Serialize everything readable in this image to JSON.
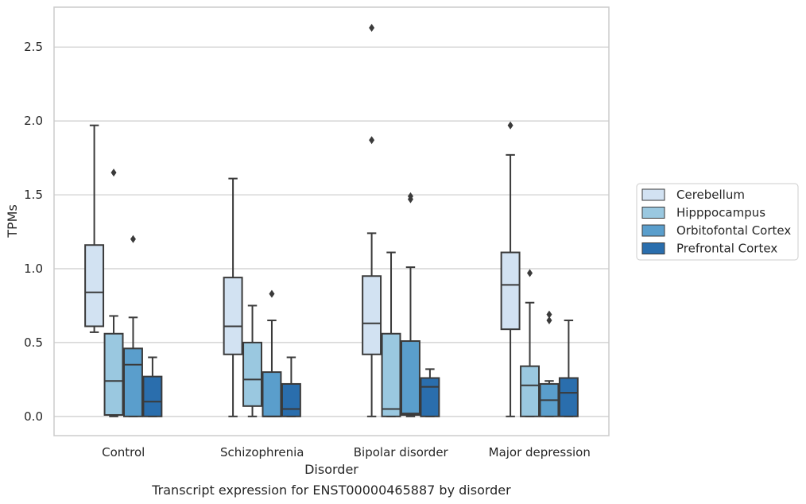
{
  "chart_data": {
    "type": "box",
    "title": "",
    "caption": "Transcript expression for ENST00000465887 by disorder",
    "xlabel": "Disorder",
    "ylabel": "TPMs",
    "ylim": [
      -0.13,
      2.77
    ],
    "yticks": [
      0.0,
      0.5,
      1.0,
      1.5,
      2.0,
      2.5
    ],
    "ytick_labels": [
      "0.0",
      "0.5",
      "1.0",
      "1.5",
      "2.0",
      "2.5"
    ],
    "grid": "horizontal",
    "legend_position": "right",
    "categories": [
      "Control",
      "Schizophrenia",
      "Bipolar disorder",
      "Major depression"
    ],
    "series": [
      {
        "name": "Cerebellum",
        "color": "#d2e2f2",
        "boxes": [
          {
            "whisker_low": 0.57,
            "q1": 0.61,
            "median": 0.84,
            "q3": 1.16,
            "whisker_high": 1.97,
            "outliers": []
          },
          {
            "whisker_low": 0.0,
            "q1": 0.42,
            "median": 0.61,
            "q3": 0.94,
            "whisker_high": 1.61,
            "outliers": []
          },
          {
            "whisker_low": 0.0,
            "q1": 0.42,
            "median": 0.63,
            "q3": 0.95,
            "whisker_high": 1.24,
            "outliers": [
              1.87,
              2.63
            ]
          },
          {
            "whisker_low": 0.0,
            "q1": 0.59,
            "median": 0.89,
            "q3": 1.11,
            "whisker_high": 1.77,
            "outliers": [
              1.97
            ]
          }
        ]
      },
      {
        "name": "Hipppocampus",
        "color": "#9ac8e0",
        "boxes": [
          {
            "whisker_low": 0.0,
            "q1": 0.01,
            "median": 0.24,
            "q3": 0.56,
            "whisker_high": 0.68,
            "outliers": [
              1.65
            ]
          },
          {
            "whisker_low": 0.0,
            "q1": 0.07,
            "median": 0.25,
            "q3": 0.5,
            "whisker_high": 0.75,
            "outliers": []
          },
          {
            "whisker_low": 0.0,
            "q1": 0.0,
            "median": 0.05,
            "q3": 0.56,
            "whisker_high": 1.11,
            "outliers": []
          },
          {
            "whisker_low": 0.0,
            "q1": 0.0,
            "median": 0.21,
            "q3": 0.34,
            "whisker_high": 0.77,
            "outliers": [
              0.97
            ]
          }
        ]
      },
      {
        "name": "Orbitofontal Cortex",
        "color": "#5a9ecc",
        "boxes": [
          {
            "whisker_low": 0.0,
            "q1": 0.0,
            "median": 0.35,
            "q3": 0.46,
            "whisker_high": 0.67,
            "outliers": [
              1.2
            ]
          },
          {
            "whisker_low": 0.0,
            "q1": 0.0,
            "median": 0.0,
            "q3": 0.3,
            "whisker_high": 0.65,
            "outliers": [
              0.83
            ]
          },
          {
            "whisker_low": 0.0,
            "q1": 0.01,
            "median": 0.02,
            "q3": 0.51,
            "whisker_high": 1.01,
            "outliers": [
              1.47,
              1.49
            ]
          },
          {
            "whisker_low": 0.0,
            "q1": 0.0,
            "median": 0.11,
            "q3": 0.22,
            "whisker_high": 0.24,
            "outliers": [
              0.65,
              0.69
            ]
          }
        ]
      },
      {
        "name": "Prefrontal Cortex",
        "color": "#2a6ead",
        "boxes": [
          {
            "whisker_low": 0.0,
            "q1": 0.0,
            "median": 0.1,
            "q3": 0.27,
            "whisker_high": 0.4,
            "outliers": []
          },
          {
            "whisker_low": 0.0,
            "q1": 0.0,
            "median": 0.05,
            "q3": 0.22,
            "whisker_high": 0.4,
            "outliers": []
          },
          {
            "whisker_low": 0.0,
            "q1": 0.0,
            "median": 0.2,
            "q3": 0.26,
            "whisker_high": 0.32,
            "outliers": []
          },
          {
            "whisker_low": 0.0,
            "q1": 0.0,
            "median": 0.16,
            "q3": 0.26,
            "whisker_high": 0.65,
            "outliers": []
          }
        ]
      }
    ],
    "style": {
      "line_color": "#3a3a3a",
      "grid_color": "#cccccc",
      "frame_color": "#cccccc",
      "text_color": "#262626"
    }
  }
}
